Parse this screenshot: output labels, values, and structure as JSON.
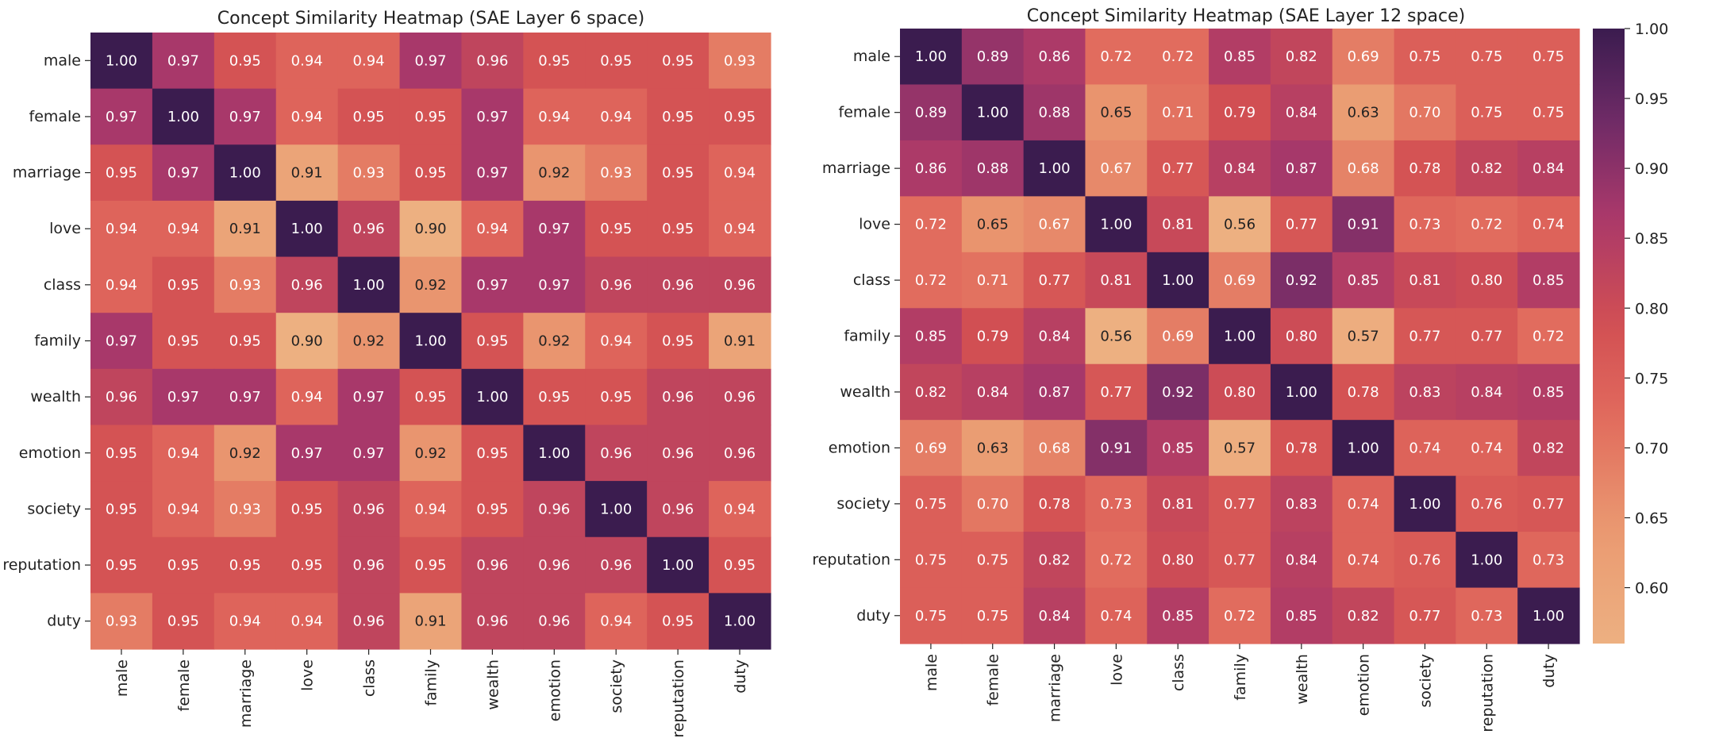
{
  "chart_data": [
    {
      "type": "heatmap",
      "title": "Concept Similarity Heatmap (SAE Layer 6 space)",
      "row_labels": [
        "male",
        "female",
        "marriage",
        "love",
        "class",
        "family",
        "wealth",
        "emotion",
        "society",
        "reputation",
        "duty"
      ],
      "col_labels": [
        "male",
        "female",
        "marriage",
        "love",
        "class",
        "family",
        "wealth",
        "emotion",
        "society",
        "reputation",
        "duty"
      ],
      "values": [
        [
          "1.00",
          "0.97",
          "0.95",
          "0.94",
          "0.94",
          "0.97",
          "0.96",
          "0.95",
          "0.95",
          "0.95",
          "0.93"
        ],
        [
          "0.97",
          "1.00",
          "0.97",
          "0.94",
          "0.95",
          "0.95",
          "0.97",
          "0.94",
          "0.94",
          "0.95",
          "0.95"
        ],
        [
          "0.95",
          "0.97",
          "1.00",
          "0.91",
          "0.93",
          "0.95",
          "0.97",
          "0.92",
          "0.93",
          "0.95",
          "0.94"
        ],
        [
          "0.94",
          "0.94",
          "0.91",
          "1.00",
          "0.96",
          "0.90",
          "0.94",
          "0.97",
          "0.95",
          "0.95",
          "0.94"
        ],
        [
          "0.94",
          "0.95",
          "0.93",
          "0.96",
          "1.00",
          "0.92",
          "0.97",
          "0.97",
          "0.96",
          "0.96",
          "0.96"
        ],
        [
          "0.97",
          "0.95",
          "0.95",
          "0.90",
          "0.92",
          "1.00",
          "0.95",
          "0.92",
          "0.94",
          "0.95",
          "0.91"
        ],
        [
          "0.96",
          "0.97",
          "0.97",
          "0.94",
          "0.97",
          "0.95",
          "1.00",
          "0.95",
          "0.95",
          "0.96",
          "0.96"
        ],
        [
          "0.95",
          "0.94",
          "0.92",
          "0.97",
          "0.97",
          "0.92",
          "0.95",
          "1.00",
          "0.96",
          "0.96",
          "0.96"
        ],
        [
          "0.95",
          "0.94",
          "0.93",
          "0.95",
          "0.96",
          "0.94",
          "0.95",
          "0.96",
          "1.00",
          "0.96",
          "0.94"
        ],
        [
          "0.95",
          "0.95",
          "0.95",
          "0.95",
          "0.96",
          "0.95",
          "0.96",
          "0.96",
          "0.96",
          "1.00",
          "0.95"
        ],
        [
          "0.93",
          "0.95",
          "0.94",
          "0.94",
          "0.96",
          "0.91",
          "0.96",
          "0.96",
          "0.94",
          "0.95",
          "1.00"
        ]
      ],
      "value_range": [
        0.9,
        1.0
      ]
    },
    {
      "type": "heatmap",
      "title": "Concept Similarity Heatmap (SAE Layer 12 space)",
      "row_labels": [
        "male",
        "female",
        "marriage",
        "love",
        "class",
        "family",
        "wealth",
        "emotion",
        "society",
        "reputation",
        "duty"
      ],
      "col_labels": [
        "male",
        "female",
        "marriage",
        "love",
        "class",
        "family",
        "wealth",
        "emotion",
        "society",
        "reputation",
        "duty"
      ],
      "values": [
        [
          "1.00",
          "0.89",
          "0.86",
          "0.72",
          "0.72",
          "0.85",
          "0.82",
          "0.69",
          "0.75",
          "0.75",
          "0.75"
        ],
        [
          "0.89",
          "1.00",
          "0.88",
          "0.65",
          "0.71",
          "0.79",
          "0.84",
          "0.63",
          "0.70",
          "0.75",
          "0.75"
        ],
        [
          "0.86",
          "0.88",
          "1.00",
          "0.67",
          "0.77",
          "0.84",
          "0.87",
          "0.68",
          "0.78",
          "0.82",
          "0.84"
        ],
        [
          "0.72",
          "0.65",
          "0.67",
          "1.00",
          "0.81",
          "0.56",
          "0.77",
          "0.91",
          "0.73",
          "0.72",
          "0.74"
        ],
        [
          "0.72",
          "0.71",
          "0.77",
          "0.81",
          "1.00",
          "0.69",
          "0.92",
          "0.85",
          "0.81",
          "0.80",
          "0.85"
        ],
        [
          "0.85",
          "0.79",
          "0.84",
          "0.56",
          "0.69",
          "1.00",
          "0.80",
          "0.57",
          "0.77",
          "0.77",
          "0.72"
        ],
        [
          "0.82",
          "0.84",
          "0.87",
          "0.77",
          "0.92",
          "0.80",
          "1.00",
          "0.78",
          "0.83",
          "0.84",
          "0.85"
        ],
        [
          "0.69",
          "0.63",
          "0.68",
          "0.91",
          "0.85",
          "0.57",
          "0.78",
          "1.00",
          "0.74",
          "0.74",
          "0.82"
        ],
        [
          "0.75",
          "0.70",
          "0.78",
          "0.73",
          "0.81",
          "0.77",
          "0.83",
          "0.74",
          "1.00",
          "0.76",
          "0.77"
        ],
        [
          "0.75",
          "0.75",
          "0.82",
          "0.72",
          "0.80",
          "0.77",
          "0.84",
          "0.74",
          "0.76",
          "1.00",
          "0.73"
        ],
        [
          "0.75",
          "0.75",
          "0.84",
          "0.74",
          "0.85",
          "0.72",
          "0.85",
          "0.82",
          "0.77",
          "0.73",
          "1.00"
        ]
      ],
      "value_range": [
        0.56,
        1.0
      ],
      "colorbar": {
        "ticks": [
          "0.60",
          "0.65",
          "0.70",
          "0.75",
          "0.80",
          "0.85",
          "0.90",
          "0.95",
          "1.00"
        ],
        "range": [
          0.56,
          1.0
        ]
      }
    }
  ],
  "colormap": {
    "name": "flare",
    "low": "#edb081",
    "mid": "#d24f53",
    "high": "#3b1c4f"
  }
}
